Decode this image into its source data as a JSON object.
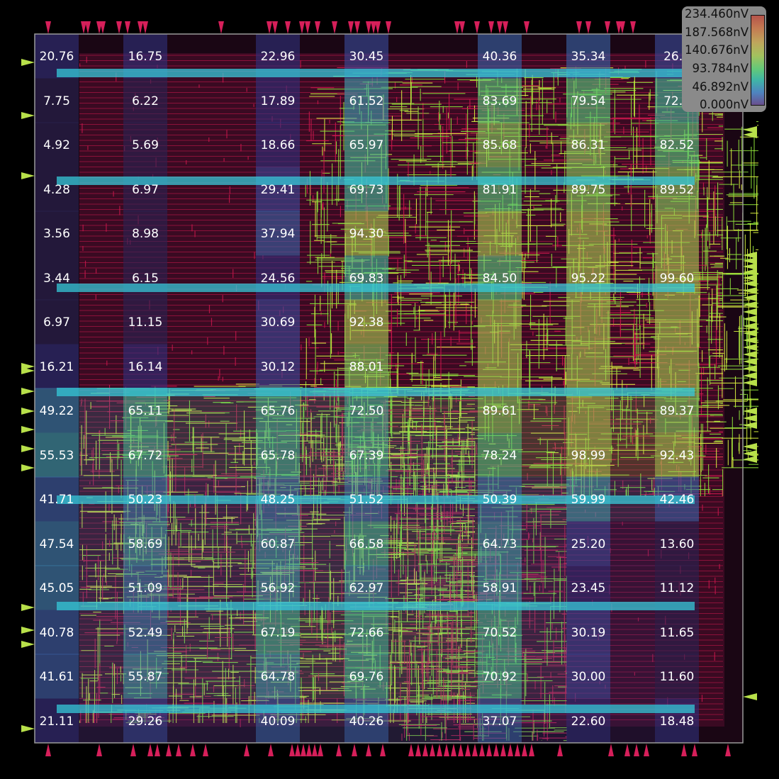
{
  "view": {
    "kind": "ir-drop-heatmap-over-layout"
  },
  "legend": {
    "labels": [
      "234.460nV",
      "187.568nV",
      "140.676nV",
      "93.784nV",
      "46.892nV",
      "0.000nV"
    ]
  },
  "grid": {
    "values": [
      [
        "20.76",
        "16.75",
        "22.96",
        "30.45",
        "40.36",
        "35.34",
        "26.8"
      ],
      [
        "7.75",
        "6.22",
        "17.89",
        "61.52",
        "83.69",
        "79.54",
        "72.6"
      ],
      [
        "4.92",
        "5.69",
        "18.66",
        "65.97",
        "85.68",
        "86.31",
        "82.52"
      ],
      [
        "4.28",
        "6.97",
        "29.41",
        "69.73",
        "81.91",
        "89.75",
        "89.52"
      ],
      [
        "3.56",
        "8.98",
        "37.94",
        "94.30",
        "",
        "",
        ""
      ],
      [
        "3.44",
        "6.15",
        "24.56",
        "69.83",
        "84.50",
        "95.22",
        "99.60"
      ],
      [
        "6.97",
        "11.15",
        "30.69",
        "92.38",
        "",
        "",
        ""
      ],
      [
        "16.21",
        "16.14",
        "30.12",
        "88.01",
        "",
        "",
        ""
      ],
      [
        "49.22",
        "65.11",
        "65.76",
        "72.50",
        "89.61",
        "",
        "89.37"
      ],
      [
        "55.53",
        "67.72",
        "65.78",
        "67.39",
        "78.24",
        "98.99",
        "92.43"
      ],
      [
        "41.71",
        "50.23",
        "48.25",
        "51.52",
        "50.39",
        "59.99",
        "42.46"
      ],
      [
        "47.54",
        "58.69",
        "60.87",
        "66.58",
        "64.73",
        "25.20",
        "13.60"
      ],
      [
        "45.05",
        "51.09",
        "56.92",
        "62.97",
        "58.91",
        "23.45",
        "11.12"
      ],
      [
        "40.78",
        "52.49",
        "67.19",
        "72.66",
        "70.52",
        "30.19",
        "11.65"
      ],
      [
        "41.61",
        "55.87",
        "64.78",
        "69.76",
        "70.92",
        "30.00",
        "11.60"
      ],
      [
        "21.11",
        "29.26",
        "40.09",
        "40.26",
        "37.07",
        "22.60",
        "18.48"
      ]
    ]
  },
  "colors": {
    "background": "#000000",
    "die_outline": "#9a9a9a",
    "pin": "#d61f5a",
    "pin_side": "#b8e04a",
    "wire_red": "#d0184e",
    "wire_green": "#8ee03a",
    "wire_yellow": "#d8f040",
    "rail": "#35c8d8",
    "label": "#ffffff"
  }
}
